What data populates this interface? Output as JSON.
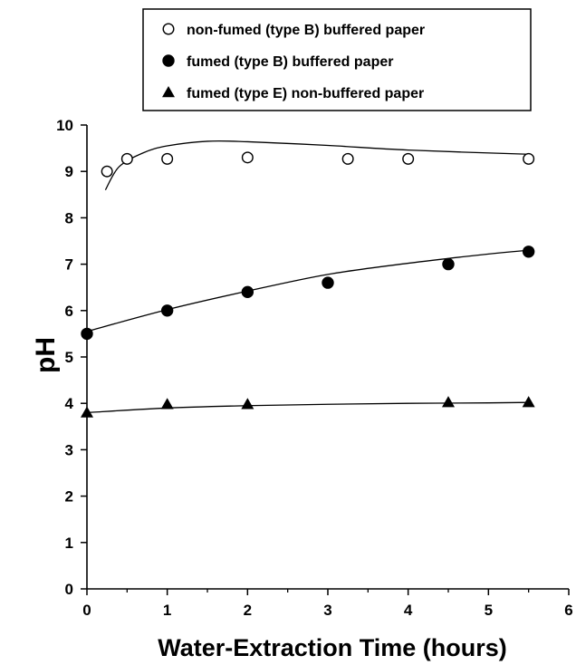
{
  "chart_data": {
    "type": "scatter",
    "title": "",
    "xlabel": "Water-Extraction Time (hours)",
    "ylabel": "pH",
    "xlim": [
      0,
      6
    ],
    "ylim": [
      0,
      10
    ],
    "xticks": [
      "0",
      "1",
      "2",
      "3",
      "4",
      "5",
      "6"
    ],
    "yticks": [
      "0",
      "1",
      "2",
      "3",
      "4",
      "5",
      "6",
      "7",
      "8",
      "9",
      "10"
    ],
    "grid": false,
    "legend_position": "top",
    "series": [
      {
        "name": "non-fumed (type B) buffered paper",
        "marker": "open-circle",
        "x": [
          0.25,
          0.5,
          1,
          2,
          3.25,
          4,
          5.5
        ],
        "y": [
          9.0,
          9.27,
          9.27,
          9.3,
          9.27,
          9.27,
          9.27
        ],
        "trend": {
          "x": [
            0.23,
            0.4,
            0.7,
            1.0,
            1.5,
            2.0,
            3.0,
            4.0,
            5.5
          ],
          "y": [
            8.6,
            9.1,
            9.4,
            9.55,
            9.65,
            9.64,
            9.56,
            9.46,
            9.37
          ]
        }
      },
      {
        "name": "fumed (type B) buffered paper",
        "marker": "filled-circle",
        "x": [
          0,
          1,
          2,
          3,
          4.5,
          5.5
        ],
        "y": [
          5.5,
          6.0,
          6.4,
          6.6,
          7.0,
          7.27
        ],
        "trend": {
          "x": [
            0,
            1,
            2,
            3,
            4,
            5,
            5.5
          ],
          "y": [
            5.55,
            6.02,
            6.42,
            6.78,
            7.02,
            7.22,
            7.3
          ]
        }
      },
      {
        "name": "fumed (type E) non-buffered paper",
        "marker": "filled-triangle",
        "x": [
          0,
          1,
          2,
          4.5,
          5.5
        ],
        "y": [
          3.8,
          3.98,
          3.98,
          4.02,
          4.02
        ],
        "trend": {
          "x": [
            0,
            1,
            2,
            3,
            4,
            5,
            5.5
          ],
          "y": [
            3.8,
            3.9,
            3.95,
            3.98,
            4.0,
            4.01,
            4.02
          ]
        }
      }
    ]
  }
}
